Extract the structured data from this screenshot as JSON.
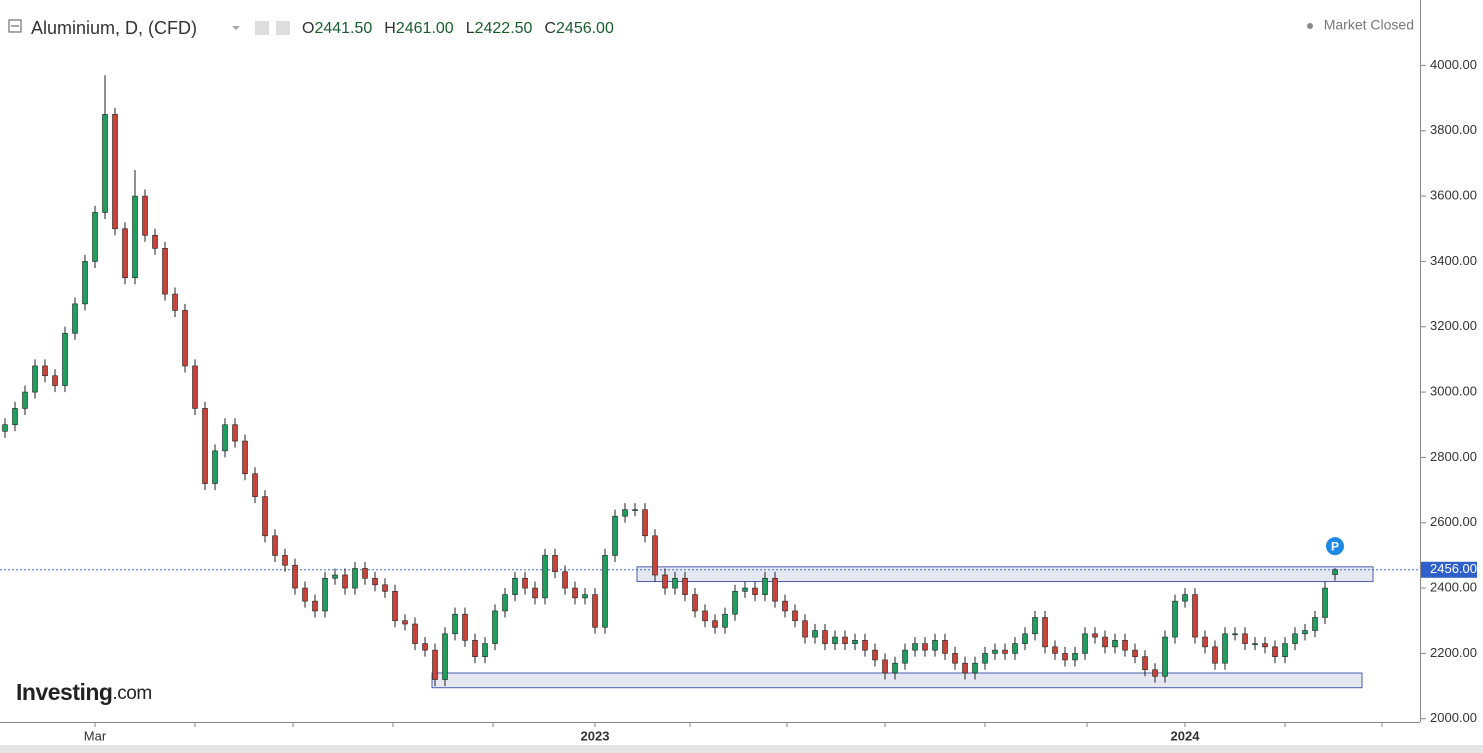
{
  "header": {
    "title": "Aluminium, D, (CFD)",
    "ohlc": [
      {
        "key": "O",
        "value": "2441.50"
      },
      {
        "key": "H",
        "value": "2461.00"
      },
      {
        "key": "L",
        "value": "2422.50"
      },
      {
        "key": "C",
        "value": "2456.00"
      }
    ],
    "status": "Market Closed"
  },
  "logo": {
    "brand": "Investing",
    "suffix": ".com"
  },
  "chart_data": {
    "type": "candlestick",
    "up_color": "#1f9e5f",
    "down_color": "#c8443a",
    "open": [
      2880,
      2900,
      2950,
      3000,
      3080,
      3050,
      3020,
      3180,
      3270,
      3400,
      3550,
      3850,
      3500,
      3350,
      3600,
      3480,
      3440,
      3300,
      3250,
      3080,
      2950,
      2720,
      2820,
      2900,
      2850,
      2750,
      2680,
      2560,
      2500,
      2470,
      2400,
      2360,
      2330,
      2430,
      2440,
      2400,
      2460,
      2430,
      2410,
      2390,
      2300,
      2290,
      2230,
      2210,
      2120,
      2260,
      2320,
      2240,
      2190,
      2230,
      2330,
      2380,
      2430,
      2400,
      2370,
      2500,
      2450,
      2400,
      2370,
      2380,
      2280,
      2500,
      2620,
      2640,
      2640,
      2560,
      2440,
      2400,
      2430,
      2380,
      2330,
      2300,
      2280,
      2320,
      2390,
      2400,
      2380,
      2430,
      2360,
      2330,
      2300,
      2250,
      2270,
      2230,
      2250,
      2230,
      2240,
      2210,
      2180,
      2140,
      2170,
      2210,
      2230,
      2210,
      2240,
      2200,
      2170,
      2140,
      2170,
      2200,
      2210,
      2200,
      2230,
      2260,
      2310,
      2220,
      2200,
      2180,
      2200,
      2260,
      2250,
      2220,
      2240,
      2210,
      2190,
      2150,
      2130,
      2250,
      2360,
      2380,
      2250,
      2220,
      2170,
      2260,
      2260,
      2230,
      2230,
      2220,
      2190,
      2230,
      2260,
      2270,
      2310,
      2441.5
    ],
    "high": [
      2920,
      2970,
      3020,
      3100,
      3100,
      3070,
      3200,
      3290,
      3420,
      3570,
      3970,
      3870,
      3520,
      3680,
      3620,
      3500,
      3460,
      3320,
      3270,
      3100,
      2970,
      2840,
      2920,
      2920,
      2870,
      2770,
      2700,
      2580,
      2520,
      2490,
      2420,
      2380,
      2450,
      2460,
      2460,
      2480,
      2480,
      2450,
      2430,
      2410,
      2320,
      2310,
      2250,
      2230,
      2280,
      2340,
      2340,
      2260,
      2250,
      2350,
      2400,
      2450,
      2450,
      2420,
      2520,
      2520,
      2470,
      2420,
      2400,
      2400,
      2520,
      2640,
      2660,
      2660,
      2660,
      2580,
      2460,
      2450,
      2450,
      2400,
      2350,
      2320,
      2340,
      2410,
      2420,
      2420,
      2450,
      2450,
      2380,
      2350,
      2320,
      2290,
      2290,
      2270,
      2270,
      2260,
      2260,
      2230,
      2200,
      2190,
      2230,
      2250,
      2250,
      2260,
      2260,
      2220,
      2190,
      2190,
      2220,
      2230,
      2230,
      2250,
      2280,
      2330,
      2330,
      2240,
      2220,
      2220,
      2280,
      2280,
      2270,
      2260,
      2260,
      2230,
      2210,
      2170,
      2270,
      2380,
      2400,
      2400,
      2270,
      2240,
      2280,
      2280,
      2280,
      2250,
      2250,
      2240,
      2250,
      2280,
      2290,
      2330,
      2420,
      2461
    ],
    "low": [
      2860,
      2880,
      2930,
      2980,
      3030,
      3000,
      3000,
      3160,
      3250,
      3380,
      3530,
      3480,
      3330,
      3330,
      3460,
      3420,
      3280,
      3230,
      3060,
      2930,
      2700,
      2700,
      2800,
      2830,
      2730,
      2660,
      2540,
      2480,
      2450,
      2380,
      2340,
      2310,
      2310,
      2410,
      2380,
      2380,
      2410,
      2390,
      2370,
      2280,
      2270,
      2210,
      2190,
      2100,
      2100,
      2240,
      2220,
      2170,
      2170,
      2210,
      2310,
      2360,
      2380,
      2350,
      2350,
      2430,
      2380,
      2350,
      2350,
      2260,
      2260,
      2480,
      2600,
      2620,
      2540,
      2420,
      2380,
      2380,
      2360,
      2310,
      2280,
      2260,
      2260,
      2300,
      2370,
      2360,
      2360,
      2340,
      2310,
      2280,
      2230,
      2230,
      2210,
      2210,
      2210,
      2210,
      2190,
      2160,
      2120,
      2120,
      2150,
      2190,
      2190,
      2190,
      2180,
      2150,
      2120,
      2120,
      2150,
      2180,
      2180,
      2180,
      2210,
      2240,
      2200,
      2180,
      2160,
      2160,
      2180,
      2230,
      2200,
      2200,
      2190,
      2170,
      2130,
      2110,
      2110,
      2230,
      2340,
      2230,
      2200,
      2150,
      2150,
      2240,
      2210,
      2210,
      2200,
      2170,
      2170,
      2210,
      2240,
      2250,
      2290,
      2422.5
    ],
    "close": [
      2900,
      2950,
      3000,
      3080,
      3050,
      3020,
      3180,
      3270,
      3400,
      3550,
      3850,
      3500,
      3350,
      3600,
      3480,
      3440,
      3300,
      3250,
      3080,
      2950,
      2720,
      2820,
      2900,
      2850,
      2750,
      2680,
      2560,
      2500,
      2470,
      2400,
      2360,
      2330,
      2430,
      2440,
      2400,
      2460,
      2430,
      2410,
      2390,
      2300,
      2290,
      2230,
      2210,
      2120,
      2260,
      2320,
      2240,
      2190,
      2230,
      2330,
      2380,
      2430,
      2400,
      2370,
      2500,
      2450,
      2400,
      2370,
      2380,
      2280,
      2500,
      2620,
      2640,
      2640,
      2560,
      2440,
      2400,
      2430,
      2380,
      2330,
      2300,
      2280,
      2320,
      2390,
      2400,
      2380,
      2430,
      2360,
      2330,
      2300,
      2250,
      2270,
      2230,
      2250,
      2230,
      2240,
      2210,
      2180,
      2140,
      2170,
      2210,
      2230,
      2210,
      2240,
      2200,
      2170,
      2140,
      2170,
      2200,
      2210,
      2200,
      2230,
      2260,
      2310,
      2220,
      2200,
      2180,
      2200,
      2260,
      2250,
      2220,
      2240,
      2210,
      2190,
      2150,
      2130,
      2250,
      2360,
      2380,
      2250,
      2220,
      2170,
      2260,
      2260,
      2230,
      2230,
      2220,
      2190,
      2230,
      2260,
      2270,
      2310,
      2400,
      2456
    ],
    "ylim": [
      1990,
      4185
    ],
    "yticks": [
      {
        "value": 2000,
        "label": "2000.00"
      },
      {
        "value": 2200,
        "label": "2200.00"
      },
      {
        "value": 2400,
        "label": "2400.00"
      },
      {
        "value": 2600,
        "label": "2600.00"
      },
      {
        "value": 2800,
        "label": "2800.00"
      },
      {
        "value": 3000,
        "label": "3000.00"
      },
      {
        "value": 3200,
        "label": "3200.00"
      },
      {
        "value": 3400,
        "label": "3400.00"
      },
      {
        "value": 3600,
        "label": "3600.00"
      },
      {
        "value": 3800,
        "label": "3800.00"
      },
      {
        "value": 4000,
        "label": "4000.00"
      }
    ],
    "xticks": [
      {
        "value": 9,
        "label": "Mar"
      },
      {
        "value": 59,
        "label": "2023"
      },
      {
        "value": 118,
        "label": "2024"
      }
    ],
    "current_price": {
      "value": 2456,
      "label": "2456.00"
    },
    "zones": [
      {
        "from": 63.2,
        "to": 136.8,
        "low": 2420,
        "high": 2465
      },
      {
        "from": 42.7,
        "to": 135.7,
        "low": 2095,
        "high": 2140
      }
    ],
    "marker": {
      "label": "P",
      "index": 133
    }
  }
}
